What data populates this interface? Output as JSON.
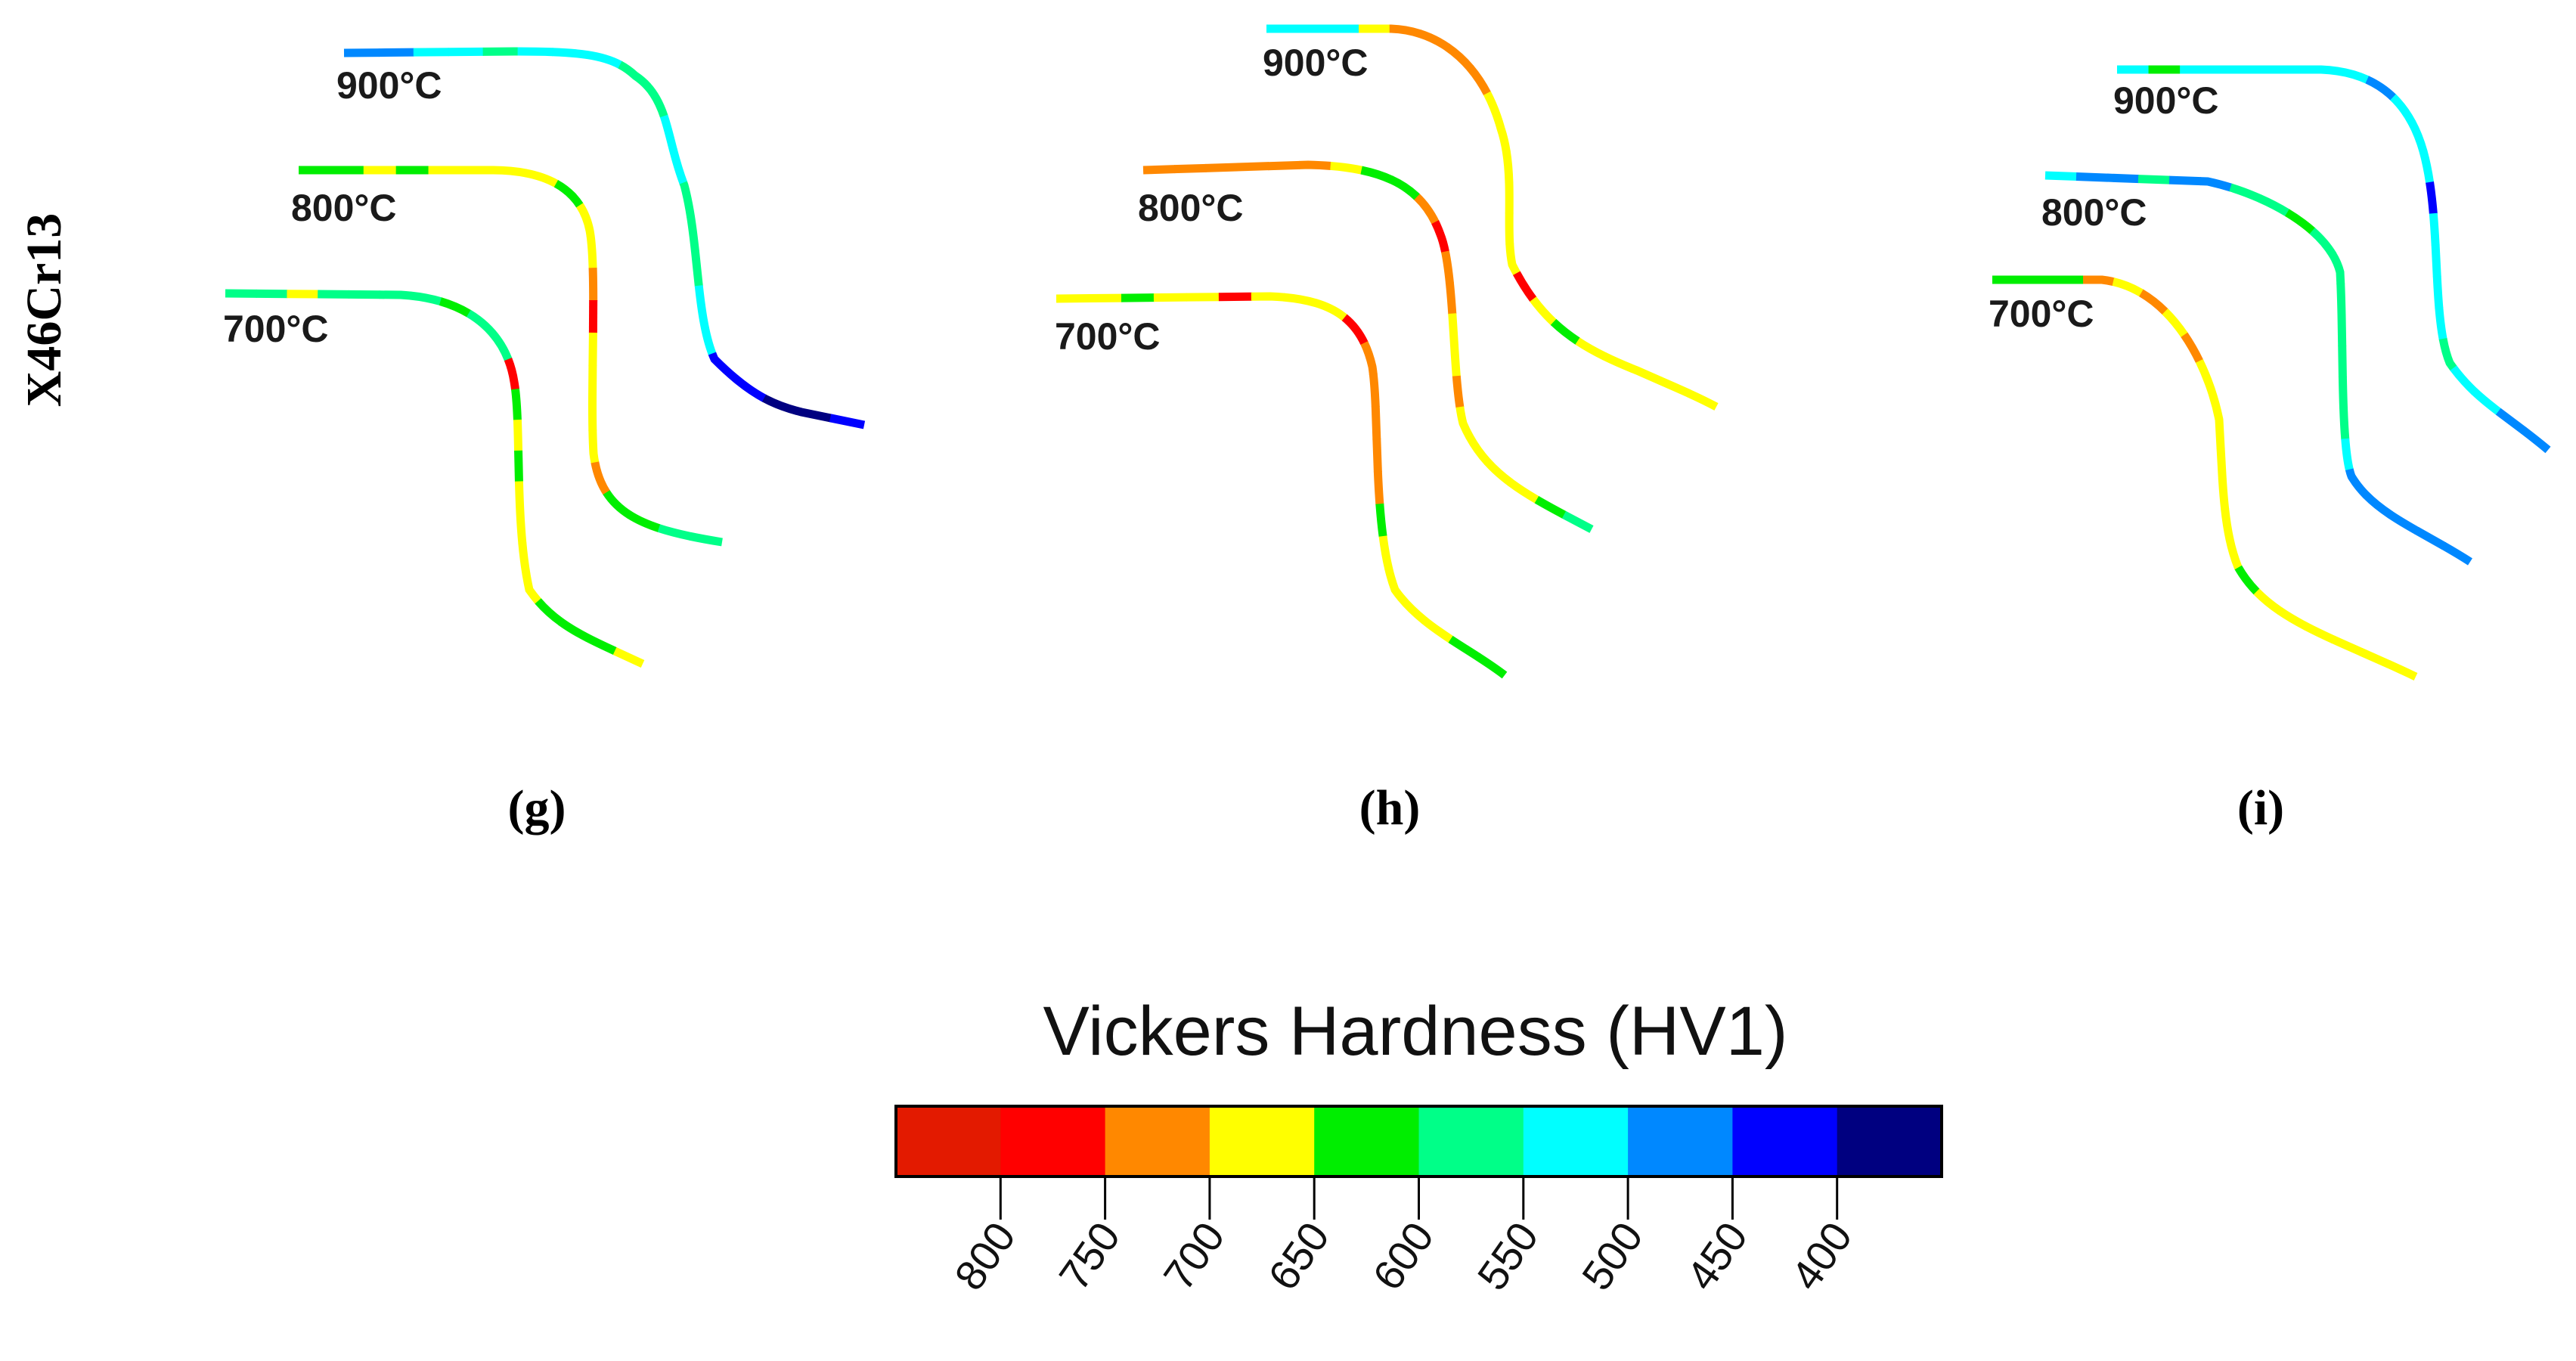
{
  "steel_label": "X46Cr13",
  "panels": [
    {
      "label": "(g)",
      "curves": [
        {
          "temp": "900°C",
          "segments": [
            "500",
            "500",
            "550",
            "550",
            "600",
            "550",
            "550",
            "550",
            "600",
            "600",
            "550",
            "550",
            "600",
            "600",
            "600",
            "550",
            "550",
            "450",
            "450",
            "400",
            "400",
            "450"
          ]
        },
        {
          "temp": "800°C",
          "segments": [
            "650",
            "650",
            "700",
            "650",
            "700",
            "700",
            "700",
            "700",
            "650",
            "700",
            "700",
            "750",
            "800",
            "700",
            "700",
            "700",
            "700",
            "750",
            "650",
            "650",
            "600",
            "600"
          ]
        },
        {
          "temp": "700°C",
          "segments": [
            "600",
            "600",
            "700",
            "600",
            "600",
            "600",
            "600",
            "650",
            "600",
            "600",
            "800",
            "650",
            "700",
            "650",
            "700",
            "700",
            "700",
            "700",
            "650",
            "650",
            "650",
            "700"
          ]
        }
      ]
    },
    {
      "label": "(h)",
      "curves": [
        {
          "temp": "900°C",
          "segments": [
            "550",
            "550",
            "550",
            "700",
            "750",
            "750",
            "750",
            "750",
            "700",
            "700",
            "700",
            "700",
            "700",
            "700",
            "800",
            "700",
            "650",
            "700",
            "700",
            "700",
            "700",
            "700"
          ]
        },
        {
          "temp": "800°C",
          "segments": [
            "750",
            "750",
            "750",
            "750",
            "750",
            "750",
            "700",
            "650",
            "650",
            "750",
            "800",
            "750",
            "750",
            "700",
            "700",
            "750",
            "700",
            "700",
            "700",
            "700",
            "650",
            "600"
          ]
        },
        {
          "temp": "700°C",
          "segments": [
            "700",
            "700",
            "650",
            "700",
            "700",
            "800",
            "700",
            "700",
            "700",
            "800",
            "750",
            "750",
            "750",
            "750",
            "750",
            "650",
            "700",
            "700",
            "700",
            "700",
            "650",
            "650"
          ]
        }
      ]
    },
    {
      "label": "(i)",
      "curves": [
        {
          "temp": "900°C",
          "segments": [
            "550",
            "650",
            "550",
            "550",
            "550",
            "550",
            "550",
            "550",
            "500",
            "550",
            "550",
            "550",
            "450",
            "550",
            "550",
            "550",
            "550",
            "600",
            "550",
            "550",
            "500",
            "500"
          ]
        },
        {
          "temp": "800°C",
          "segments": [
            "550",
            "500",
            "500",
            "600",
            "500",
            "500",
            "600",
            "600",
            "650",
            "600",
            "600",
            "600",
            "600",
            "600",
            "600",
            "600",
            "550",
            "500",
            "500",
            "500",
            "500",
            "500"
          ]
        },
        {
          "temp": "700°C",
          "segments": [
            "650",
            "650",
            "650",
            "750",
            "700",
            "750",
            "700",
            "750",
            "700",
            "700",
            "700",
            "700",
            "700",
            "700",
            "700",
            "650",
            "700",
            "700",
            "700",
            "700",
            "700",
            "700"
          ]
        }
      ]
    }
  ],
  "colorbar": {
    "title": "Vickers Hardness (HV1)",
    "bins": [
      {
        "key": "850",
        "color": "#e31a00"
      },
      {
        "key": "800",
        "color": "#ff0000"
      },
      {
        "key": "750",
        "color": "#ff8800"
      },
      {
        "key": "700",
        "color": "#ffff00"
      },
      {
        "key": "650",
        "color": "#00ee00"
      },
      {
        "key": "600",
        "color": "#00ff88"
      },
      {
        "key": "550",
        "color": "#00ffff"
      },
      {
        "key": "500",
        "color": "#0088ff"
      },
      {
        "key": "450",
        "color": "#0000ff"
      },
      {
        "key": "400",
        "color": "#000080"
      }
    ],
    "ticks": [
      "800",
      "750",
      "700",
      "650",
      "600",
      "550",
      "500",
      "450",
      "400"
    ]
  }
}
